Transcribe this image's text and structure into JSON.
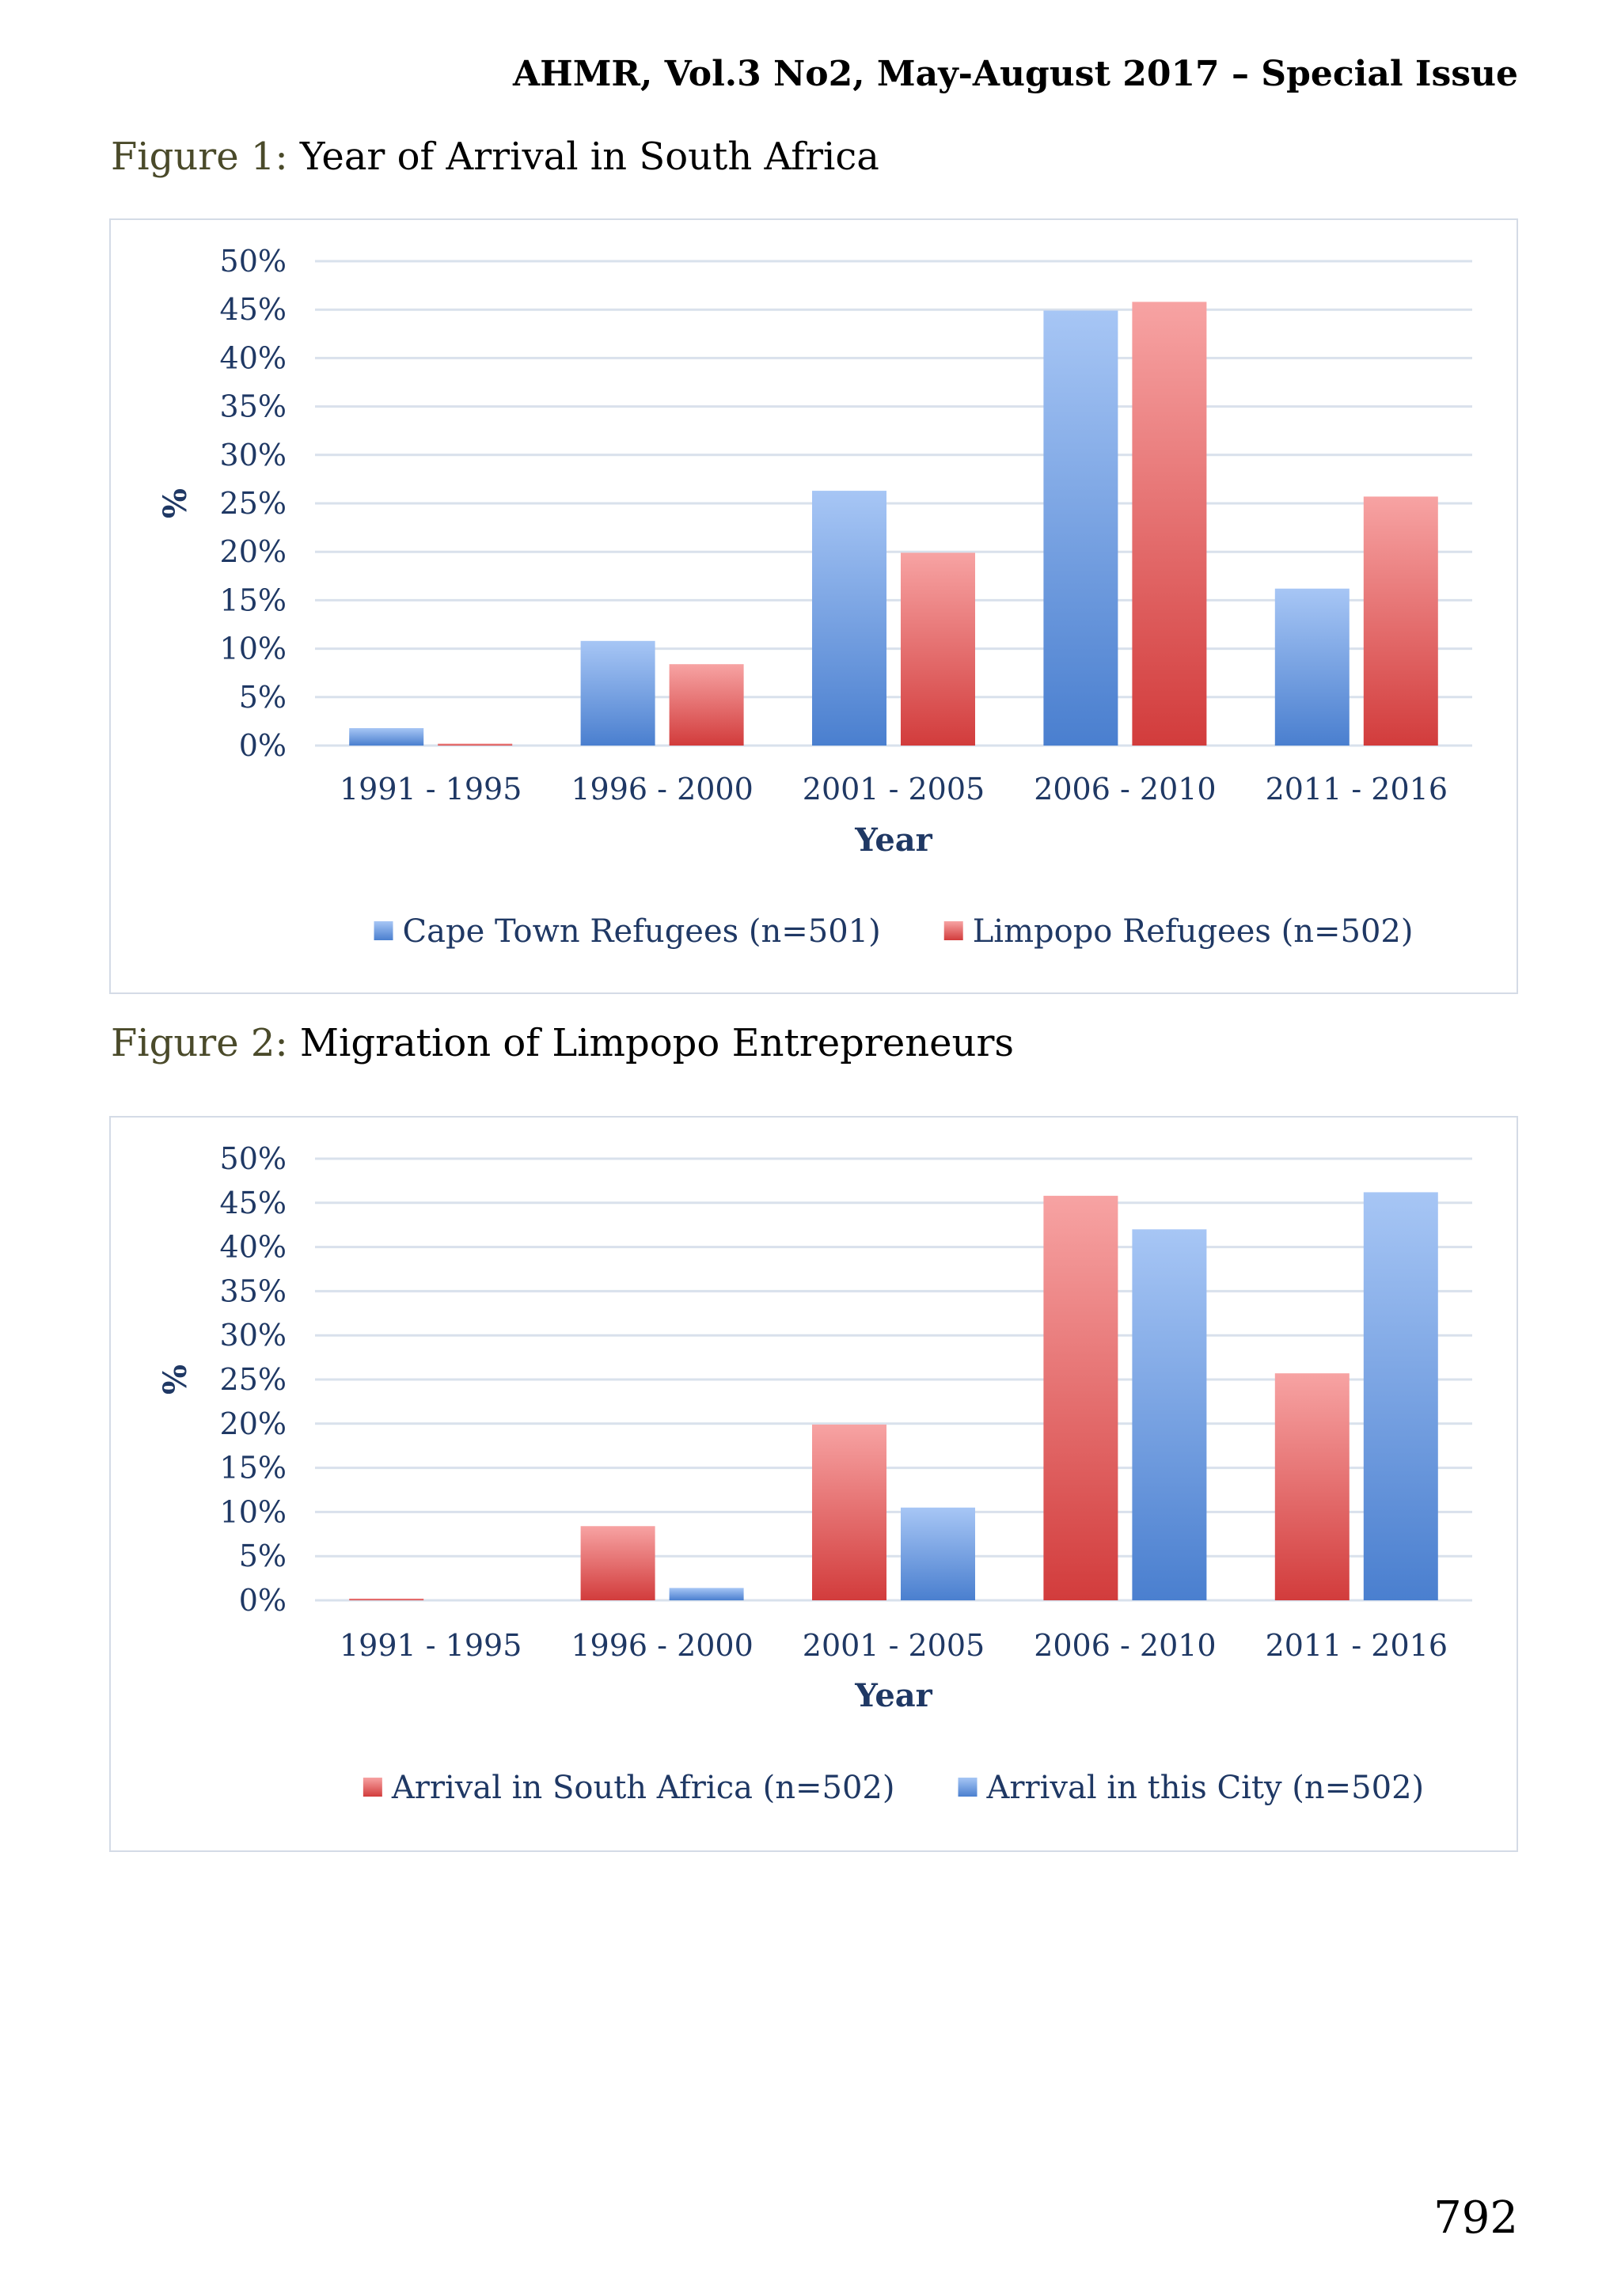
{
  "header": {
    "running_title": "AHMR, Vol.3 No2, May-August 2017 – Special Issue"
  },
  "figures": [
    {
      "label": "Figure 1:",
      "title": "Year of Arrival in South Africa"
    },
    {
      "label": "Figure 2:",
      "title": "Migration of Limpopo Entrepreneurs"
    }
  ],
  "colors": {
    "blue": "#4a7fcf",
    "blue_light": "#a7c6f5",
    "red": "#d23c3c",
    "red_light": "#f7a3a3",
    "grid": "#d9e1ec",
    "text": "#1f3864"
  },
  "chart_data": [
    {
      "type": "bar",
      "title": "",
      "xlabel": "Year",
      "ylabel": "%",
      "ylim": [
        0,
        50
      ],
      "yticks": [
        "0%",
        "5%",
        "10%",
        "15%",
        "20%",
        "25%",
        "30%",
        "35%",
        "40%",
        "45%",
        "50%"
      ],
      "grid": true,
      "legend_position": "bottom",
      "categories": [
        "1991 - 1995",
        "1996 - 2000",
        "2001 - 2005",
        "2006 - 2010",
        "2011 - 2016"
      ],
      "series": [
        {
          "name": "Cape Town Refugees (n=501)",
          "color": "blue",
          "values": [
            1.8,
            10.8,
            26.3,
            44.9,
            16.2
          ]
        },
        {
          "name": "Limpopo Refugees (n=502)",
          "color": "red",
          "values": [
            0.2,
            8.4,
            19.9,
            45.8,
            25.7
          ]
        }
      ]
    },
    {
      "type": "bar",
      "title": "",
      "xlabel": "Year",
      "ylabel": "%",
      "ylim": [
        0,
        50
      ],
      "yticks": [
        "0%",
        "5%",
        "10%",
        "15%",
        "20%",
        "25%",
        "30%",
        "35%",
        "40%",
        "45%",
        "50%"
      ],
      "grid": true,
      "legend_position": "bottom",
      "categories": [
        "1991 - 1995",
        "1996 - 2000",
        "2001 - 2005",
        "2006 - 2010",
        "2011 - 2016"
      ],
      "series": [
        {
          "name": "Arrival in South Africa (n=502)",
          "color": "red",
          "values": [
            0.2,
            8.4,
            19.9,
            45.8,
            25.7
          ]
        },
        {
          "name": "Arrival in this City (n=502)",
          "color": "blue",
          "values": [
            0.0,
            1.4,
            10.5,
            42.0,
            46.2
          ]
        }
      ]
    }
  ],
  "page_number": "792"
}
